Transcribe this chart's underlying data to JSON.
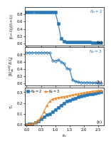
{
  "panel_a": {
    "x": [
      0.0,
      0.1,
      0.2,
      0.3,
      0.4,
      0.5,
      0.6,
      0.7,
      0.8,
      0.9,
      1.0,
      1.1,
      1.2,
      1.3,
      1.4,
      1.5,
      1.6,
      1.7,
      1.8,
      1.9,
      2.0,
      2.1,
      2.2,
      2.3,
      2.4,
      2.5,
      2.6
    ],
    "y": [
      0.87,
      0.87,
      0.87,
      0.87,
      0.87,
      0.87,
      0.87,
      0.87,
      0.87,
      0.87,
      0.86,
      0.55,
      0.14,
      0.06,
      0.04,
      0.04,
      0.03,
      0.03,
      0.03,
      0.03,
      0.03,
      0.03,
      0.03,
      0.02,
      0.02,
      0.02,
      0.02
    ],
    "color": "#2878b5",
    "marker": "s",
    "markersize": 2.2,
    "linewidth": 0.8,
    "ylabel": "|$\\ell_1$$-$$\\ell_2$|/($\\ell_1$$+$$\\ell_2$)",
    "label": "$N_e = 2$",
    "panel_label": "(a)"
  },
  "panel_b": {
    "x": [
      0.0,
      0.1,
      0.2,
      0.3,
      0.4,
      0.5,
      0.6,
      0.7,
      0.8,
      0.9,
      1.0,
      1.1,
      1.2,
      1.3,
      1.4,
      1.5,
      1.6,
      1.7,
      1.8,
      1.9,
      2.0,
      2.1,
      2.2,
      2.3,
      2.4,
      2.5,
      2.6
    ],
    "y": [
      0.85,
      0.85,
      0.85,
      0.85,
      0.85,
      0.85,
      0.85,
      0.85,
      0.85,
      0.64,
      0.62,
      0.65,
      0.6,
      0.55,
      0.42,
      0.4,
      0.1,
      0.06,
      0.04,
      0.03,
      0.03,
      0.03,
      0.03,
      0.02,
      0.02,
      0.01,
      0.01
    ],
    "color": "#2878b5",
    "marker": "D",
    "markersize": 2.0,
    "linewidth": 0.8,
    "ylabel": "$|\\Sigma\\ell_{ab}^{ext(j)}/\\Sigma\\ell_a|$",
    "label": "$N_e = 3$",
    "panel_label": "(b)"
  },
  "panel_c": {
    "x_ne2": [
      0.0,
      0.1,
      0.2,
      0.3,
      0.4,
      0.5,
      0.6,
      0.7,
      0.8,
      0.9,
      1.0,
      1.1,
      1.2,
      1.3,
      1.4,
      1.5,
      1.6,
      1.7,
      1.8,
      1.9,
      2.0,
      2.1,
      2.2,
      2.3,
      2.4,
      2.5,
      2.6
    ],
    "y_ne2": [
      0.0,
      0.005,
      0.01,
      0.02,
      0.03,
      0.05,
      0.07,
      0.09,
      0.1,
      0.12,
      0.14,
      0.16,
      0.18,
      0.2,
      0.215,
      0.225,
      0.235,
      0.245,
      0.255,
      0.262,
      0.27,
      0.275,
      0.28,
      0.285,
      0.29,
      0.295,
      0.3
    ],
    "x_ne3": [
      0.0,
      0.1,
      0.2,
      0.3,
      0.4,
      0.5,
      0.6,
      0.7,
      0.8,
      0.9,
      1.0,
      1.1,
      1.2,
      1.3,
      1.4,
      1.5,
      1.6,
      1.7,
      1.8,
      1.9,
      2.0,
      2.1,
      2.2,
      2.3,
      2.4,
      2.5,
      2.6
    ],
    "y_ne3": [
      0.0,
      0.005,
      0.01,
      0.02,
      0.04,
      0.07,
      0.12,
      0.175,
      0.215,
      0.235,
      0.245,
      0.25,
      0.255,
      0.26,
      0.265,
      0.27,
      0.275,
      0.28,
      0.285,
      0.29,
      0.295,
      0.3,
      0.305,
      0.308,
      0.312,
      0.315,
      0.318
    ],
    "color_ne2": "#2878b5",
    "color_ne3": "#f28522",
    "marker_ne2": "s",
    "marker_ne3": "^",
    "markersize": 2.2,
    "linewidth": 0.8,
    "ylabel": "$T_s$",
    "label_ne2": "$N_e = 2$",
    "label_ne3": "$N_e = 3$",
    "panel_label": "(c)"
  },
  "xlim": [
    -0.05,
    2.7
  ],
  "xlabel": "$k_c$",
  "yticks_a": [
    0.0,
    0.2,
    0.4,
    0.6,
    0.8
  ],
  "yticks_b": [
    0.0,
    0.2,
    0.4,
    0.6,
    0.8
  ],
  "yticks_c": [
    0.0,
    0.1,
    0.2,
    0.3
  ],
  "xticks": [
    0.0,
    0.5,
    1.0,
    1.5,
    2.0,
    2.5
  ],
  "background_color": "#ffffff",
  "figure_bg": "#ffffff"
}
